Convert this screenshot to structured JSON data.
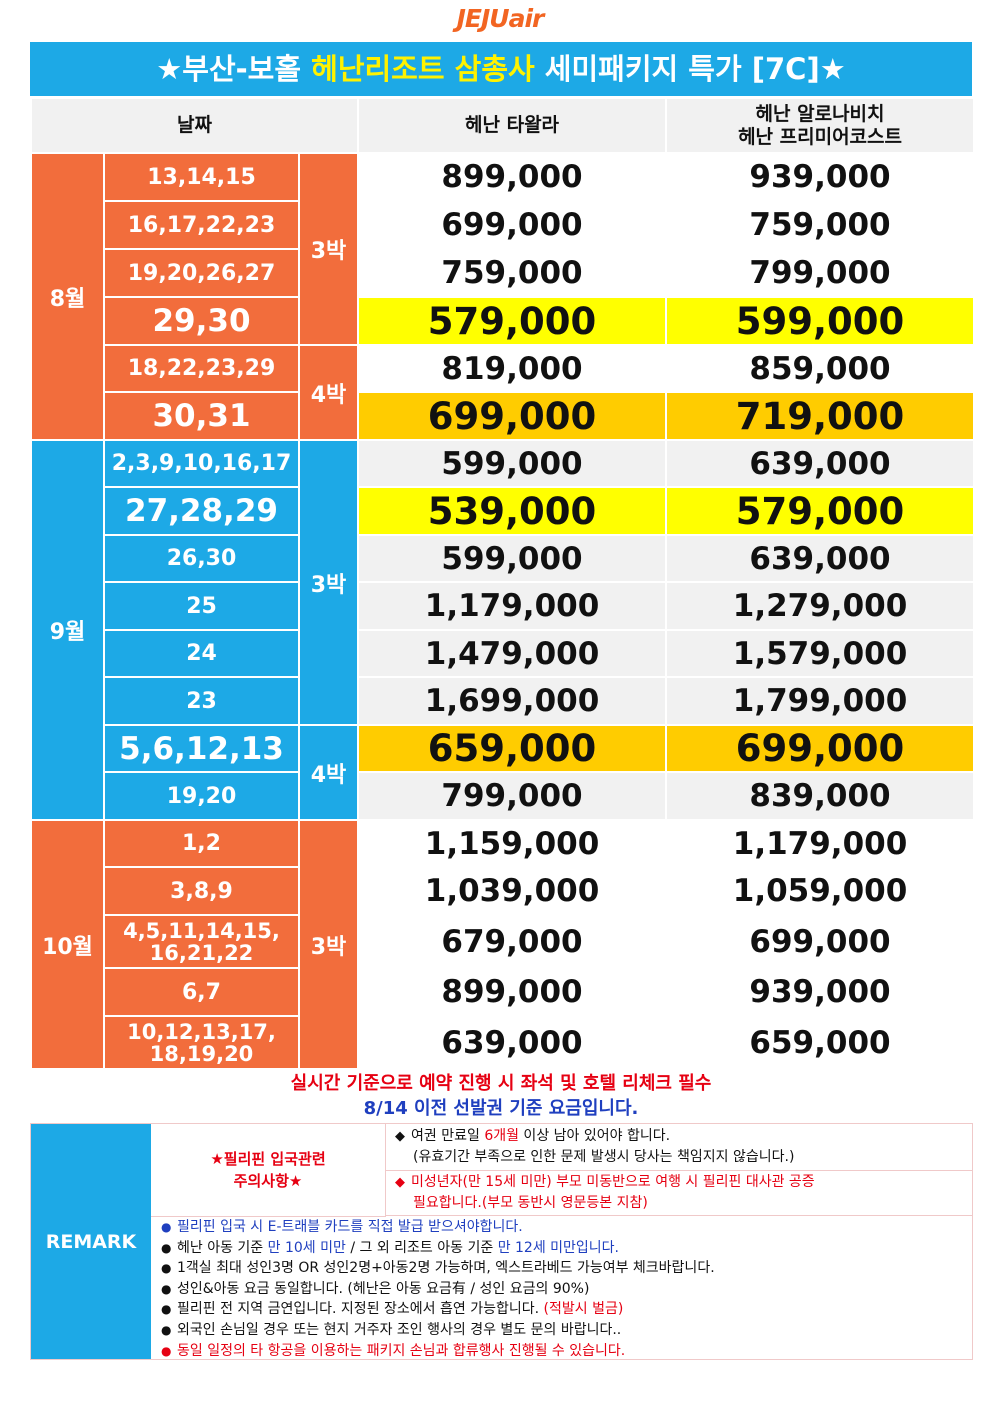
{
  "logo": "JEJUair",
  "banner": {
    "star_left": "★부산-보홀 ",
    "highlight": "헤난리조트 삼총사",
    "rest": " 세미패키지 특가 [7C]★"
  },
  "table": {
    "header": {
      "date": "날짜",
      "col1": "헤난 타왈라",
      "col2_line1": "헤난 알로나비치",
      "col2_line2": "헤난 프리미어코스트"
    },
    "months": {
      "aug": "8월",
      "sep": "9월",
      "oct": "10월"
    },
    "nights": {
      "n3": "3박",
      "n4": "4박"
    },
    "rows": [
      {
        "date": "13,14,15",
        "p1": "899,000",
        "p2": "939,000"
      },
      {
        "date": "16,17,22,23",
        "p1": "699,000",
        "p2": "759,000"
      },
      {
        "date": "19,20,26,27",
        "p1": "759,000",
        "p2": "799,000"
      },
      {
        "date": "29,30",
        "p1": "579,000",
        "p2": "599,000"
      },
      {
        "date": "18,22,23,29",
        "p1": "819,000",
        "p2": "859,000"
      },
      {
        "date": "30,31",
        "p1": "699,000",
        "p2": "719,000"
      },
      {
        "date": "2,3,9,10,16,17",
        "p1": "599,000",
        "p2": "639,000"
      },
      {
        "date": "27,28,29",
        "p1": "539,000",
        "p2": "579,000"
      },
      {
        "date": "26,30",
        "p1": "599,000",
        "p2": "639,000"
      },
      {
        "date": "25",
        "p1": "1,179,000",
        "p2": "1,279,000"
      },
      {
        "date": "24",
        "p1": "1,479,000",
        "p2": "1,579,000"
      },
      {
        "date": "23",
        "p1": "1,699,000",
        "p2": "1,799,000"
      },
      {
        "date": "5,6,12,13",
        "p1": "659,000",
        "p2": "699,000"
      },
      {
        "date": "19,20",
        "p1": "799,000",
        "p2": "839,000"
      },
      {
        "date": "1,2",
        "p1": "1,159,000",
        "p2": "1,179,000"
      },
      {
        "date": "3,8,9",
        "p1": "1,039,000",
        "p2": "1,059,000"
      },
      {
        "date_line1": "4,5,11,14,15,",
        "date_line2": "16,21,22",
        "p1": "679,000",
        "p2": "699,000"
      },
      {
        "date": "6,7",
        "p1": "899,000",
        "p2": "939,000"
      },
      {
        "date_line1": "10,12,13,17,",
        "date_line2": "18,19,20",
        "p1": "639,000",
        "p2": "659,000"
      }
    ]
  },
  "notice": {
    "line1": "실시간 기준으로 예약 진행 시 좌석 및 호텔 리체크 필수",
    "line2": "8/14 이전 선발권 기준 요금입니다."
  },
  "remark": {
    "label": "REMARK",
    "caution_line1": "★필리핀 입국관련",
    "caution_line2": "주의사항★",
    "diamond": "◆",
    "bullet": "●",
    "passport_a": "여권 만료일 ",
    "passport_b": "6개월",
    "passport_c": " 이상 남아 있어야 합니다.",
    "passport_line2": "(유효기간 부족으로 인한 문제 발생시 당사는 책임지지 않습니다.)",
    "minor_line1": "미성년자(만 15세 미만) 부모 미동반으로 여행 시 필리핀 대사관 공증",
    "minor_line2": "필요합니다.(부모 동반시 영문등본 지참)",
    "b1": "필리핀 입국 시 E-트래블 카드를 직접 발급 받으셔야합니다.",
    "b2_a": "헤난 아동 기준 ",
    "b2_b": "만 10세 미만",
    "b2_c": " / 그 외 리조트 아동 기준 ",
    "b2_d": "만 12세 미만입니다.",
    "b3": "1객실 최대 성인3명 OR 성인2명+아동2명 가능하며, 엑스트라베드 가능여부 체크바랍니다.",
    "b4": "성인&아동 요금 동일합니다. (헤난은 아동 요금有 / 성인 요금의 90%)",
    "b5_a": "필리핀 전 지역 금연입니다. 지정된 장소에서 흡연 가능합니다. ",
    "b5_b": "(적발시 벌금)",
    "b6": "외국인 손님일 경우 또는 현지 거주자 조인 행사의 경우 별도 문의 바랍니다..",
    "b7": "동일 일정의 타 항공을 이용하는 패키지 손님과 합류행사 진행될 수 있습니다."
  }
}
